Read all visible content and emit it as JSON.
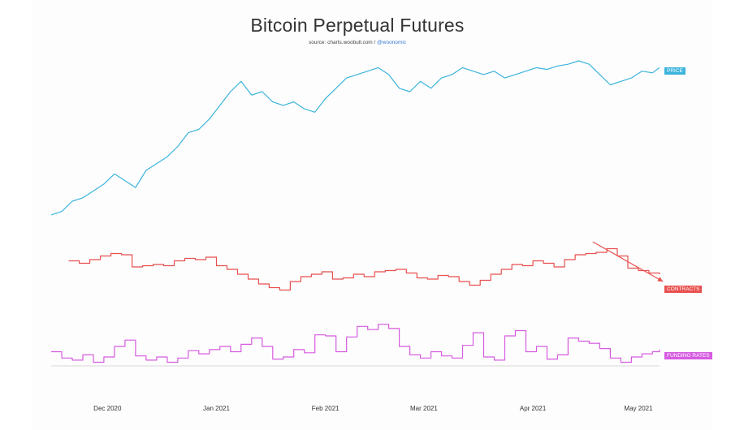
{
  "title": "Bitcoin Perpetual Futures",
  "source": {
    "prefix": "source: charts.woobull.com /",
    "handle": "@woonomic"
  },
  "chart_data": {
    "type": "line",
    "title": "Bitcoin Perpetual Futures",
    "x_tick_labels": [
      "Dec 2020",
      "Jan 2021",
      "Feb 2021",
      "Mar 2021",
      "Apr 2021",
      "May 2021"
    ],
    "x_range": [
      "2020-11-15",
      "2021-05-07"
    ],
    "grid": false,
    "legend": "right-side tags",
    "series": [
      {
        "name": "PRICE",
        "color": "#3cb4dc",
        "step": false,
        "x": [
          "2020-11-15",
          "2020-11-18",
          "2020-11-21",
          "2020-11-24",
          "2020-11-27",
          "2020-11-30",
          "2020-12-03",
          "2020-12-06",
          "2020-12-09",
          "2020-12-12",
          "2020-12-15",
          "2020-12-18",
          "2020-12-21",
          "2020-12-24",
          "2020-12-27",
          "2020-12-30",
          "2021-01-02",
          "2021-01-05",
          "2021-01-08",
          "2021-01-11",
          "2021-01-14",
          "2021-01-17",
          "2021-01-20",
          "2021-01-23",
          "2021-01-26",
          "2021-01-29",
          "2021-02-01",
          "2021-02-04",
          "2021-02-07",
          "2021-02-10",
          "2021-02-13",
          "2021-02-16",
          "2021-02-19",
          "2021-02-22",
          "2021-02-25",
          "2021-02-28",
          "2021-03-03",
          "2021-03-06",
          "2021-03-09",
          "2021-03-12",
          "2021-03-15",
          "2021-03-18",
          "2021-03-21",
          "2021-03-24",
          "2021-03-27",
          "2021-03-30",
          "2021-04-02",
          "2021-04-05",
          "2021-04-08",
          "2021-04-11",
          "2021-04-14",
          "2021-04-17",
          "2021-04-20",
          "2021-04-23",
          "2021-04-26",
          "2021-04-29",
          "2021-05-02",
          "2021-05-05",
          "2021-05-07"
        ],
        "values": [
          10,
          12,
          18,
          20,
          24,
          28,
          34,
          30,
          26,
          36,
          40,
          44,
          50,
          58,
          60,
          66,
          74,
          82,
          88,
          80,
          82,
          76,
          74,
          76,
          72,
          70,
          78,
          84,
          90,
          92,
          94,
          96,
          92,
          84,
          82,
          88,
          84,
          90,
          92,
          96,
          94,
          92,
          94,
          90,
          92,
          94,
          96,
          95,
          97,
          98,
          100,
          98,
          92,
          86,
          88,
          90,
          94,
          93,
          96
        ],
        "note": "relative trend 0-100 (no value axis printed)"
      },
      {
        "name": "CONTRACTS",
        "color": "#e8504f",
        "step": true,
        "x": [
          "2020-11-20",
          "2020-11-23",
          "2020-11-26",
          "2020-11-29",
          "2020-12-02",
          "2020-12-05",
          "2020-12-08",
          "2020-12-11",
          "2020-12-14",
          "2020-12-17",
          "2020-12-20",
          "2020-12-23",
          "2020-12-26",
          "2020-12-29",
          "2021-01-01",
          "2021-01-04",
          "2021-01-07",
          "2021-01-10",
          "2021-01-13",
          "2021-01-16",
          "2021-01-19",
          "2021-01-22",
          "2021-01-25",
          "2021-01-28",
          "2021-01-31",
          "2021-02-03",
          "2021-02-06",
          "2021-02-09",
          "2021-02-12",
          "2021-02-15",
          "2021-02-18",
          "2021-02-21",
          "2021-02-24",
          "2021-02-27",
          "2021-03-02",
          "2021-03-05",
          "2021-03-08",
          "2021-03-11",
          "2021-03-14",
          "2021-03-17",
          "2021-03-20",
          "2021-03-23",
          "2021-03-26",
          "2021-03-29",
          "2021-04-01",
          "2021-04-04",
          "2021-04-07",
          "2021-04-10",
          "2021-04-13",
          "2021-04-16",
          "2021-04-19",
          "2021-04-22",
          "2021-04-25",
          "2021-04-28",
          "2021-05-01",
          "2021-05-04",
          "2021-05-07"
        ],
        "values": [
          78,
          74,
          80,
          86,
          90,
          88,
          68,
          70,
          72,
          70,
          78,
          82,
          80,
          84,
          70,
          64,
          56,
          48,
          40,
          34,
          30,
          44,
          52,
          56,
          60,
          48,
          50,
          56,
          52,
          60,
          62,
          64,
          58,
          50,
          48,
          54,
          52,
          44,
          38,
          46,
          56,
          64,
          72,
          70,
          78,
          74,
          68,
          80,
          88,
          90,
          92,
          98,
          86,
          66,
          62,
          58,
          56
        ],
        "note": "relative trend 0-100 (no value axis printed)"
      },
      {
        "name": "FUNDING RATES",
        "color": "#d65be0",
        "step": true,
        "x": [
          "2020-11-15",
          "2020-11-18",
          "2020-11-21",
          "2020-11-24",
          "2020-11-27",
          "2020-11-30",
          "2020-12-03",
          "2020-12-06",
          "2020-12-09",
          "2020-12-12",
          "2020-12-15",
          "2020-12-18",
          "2020-12-21",
          "2020-12-24",
          "2020-12-27",
          "2020-12-30",
          "2021-01-02",
          "2021-01-05",
          "2021-01-08",
          "2021-01-11",
          "2021-01-14",
          "2021-01-17",
          "2021-01-20",
          "2021-01-23",
          "2021-01-26",
          "2021-01-29",
          "2021-02-01",
          "2021-02-04",
          "2021-02-07",
          "2021-02-10",
          "2021-02-13",
          "2021-02-16",
          "2021-02-19",
          "2021-02-22",
          "2021-02-25",
          "2021-02-28",
          "2021-03-03",
          "2021-03-06",
          "2021-03-09",
          "2021-03-12",
          "2021-03-15",
          "2021-03-18",
          "2021-03-21",
          "2021-03-24",
          "2021-03-27",
          "2021-03-30",
          "2021-04-02",
          "2021-04-05",
          "2021-04-08",
          "2021-04-11",
          "2021-04-14",
          "2021-04-17",
          "2021-04-20",
          "2021-04-23",
          "2021-04-26",
          "2021-04-29",
          "2021-05-02",
          "2021-05-05",
          "2021-05-07"
        ],
        "values": [
          30,
          18,
          14,
          24,
          10,
          20,
          40,
          52,
          22,
          14,
          20,
          10,
          18,
          32,
          26,
          34,
          40,
          30,
          44,
          56,
          40,
          16,
          20,
          34,
          28,
          62,
          60,
          30,
          58,
          78,
          72,
          82,
          74,
          40,
          24,
          18,
          30,
          22,
          18,
          42,
          66,
          20,
          14,
          60,
          70,
          30,
          40,
          16,
          24,
          56,
          50,
          46,
          36,
          18,
          10,
          20,
          26,
          30,
          34
        ],
        "note": "relative trend 0-100 (no value axis printed)"
      }
    ],
    "annotations": [
      {
        "type": "arrow",
        "target": "CONTRACTS",
        "from": "2021-04-18",
        "to": "2021-05-08",
        "direction": "down-right",
        "color": "#e8504f"
      }
    ]
  }
}
